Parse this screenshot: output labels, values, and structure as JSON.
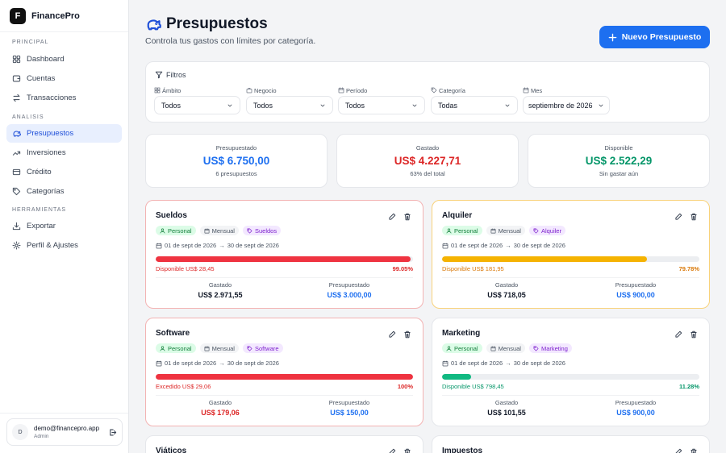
{
  "app": {
    "logo_letter": "F",
    "name": "FinancePro"
  },
  "sidebar": {
    "sections": [
      {
        "label": "PRINCIPAL",
        "items": [
          {
            "label": "Dashboard",
            "icon": "grid-icon"
          },
          {
            "label": "Cuentas",
            "icon": "wallet-icon"
          },
          {
            "label": "Transacciones",
            "icon": "arrows-icon"
          }
        ]
      },
      {
        "label": "ANALISIS",
        "items": [
          {
            "label": "Presupuestos",
            "icon": "piggy-bank-icon",
            "active": true
          },
          {
            "label": "Inversiones",
            "icon": "trending-up-icon"
          },
          {
            "label": "Crédito",
            "icon": "credit-card-icon"
          },
          {
            "label": "Categorías",
            "icon": "tag-icon"
          }
        ]
      },
      {
        "label": "HERRAMIENTAS",
        "items": [
          {
            "label": "Exportar",
            "icon": "download-icon"
          },
          {
            "label": "Perfil & Ajustes",
            "icon": "gear-icon"
          }
        ]
      }
    ]
  },
  "user": {
    "initial": "D",
    "email": "demo@financepro.app",
    "role": "Admin"
  },
  "header": {
    "title": "Presupuestos",
    "subtitle": "Controla tus gastos con límites por categoría.",
    "new_button": "Nuevo Presupuesto"
  },
  "filters": {
    "title": "Filtros",
    "fields": [
      {
        "label": "Ámbito",
        "value": "Todos",
        "icon": "grid-icon"
      },
      {
        "label": "Negocio",
        "value": "Todos",
        "icon": "briefcase-icon"
      },
      {
        "label": "Período",
        "value": "Todos",
        "icon": "calendar-icon"
      },
      {
        "label": "Categoría",
        "value": "Todas",
        "icon": "tag-icon"
      },
      {
        "label": "Mes",
        "value": "septiembre de 2026",
        "icon": "calendar-icon"
      }
    ]
  },
  "summary": [
    {
      "label": "Presupuestado",
      "value": "US$ 6.750,00",
      "note": "6 presupuestos",
      "color": "#1d6ff0"
    },
    {
      "label": "Gastado",
      "value": "US$ 4.227,71",
      "note": "63% del total",
      "color": "#dc2626"
    },
    {
      "label": "Disponible",
      "value": "US$ 2.522,29",
      "note": "Sin gastar aún",
      "color": "#059669"
    }
  ],
  "budgets": [
    {
      "name": "Sueldos",
      "scope": "Personal",
      "period": "Mensual",
      "category": "Sueldos",
      "start": "01 de sept de 2026",
      "arrow": "→",
      "end": "30 de sept de 2026",
      "progress": 0.9905,
      "bar_color": "#ef3340",
      "status": "Disponible US$ 28,45",
      "status_color": "#dc2626",
      "percent": "99.05%",
      "spent_label": "Gastado",
      "spent": "US$ 2.971,55",
      "spent_color": "#111827",
      "budget_label": "Presupuestado",
      "budget": "US$ 3.000,00",
      "border": "red"
    },
    {
      "name": "Alquiler",
      "scope": "Personal",
      "period": "Mensual",
      "category": "Alquiler",
      "start": "01 de sept de 2026",
      "arrow": "→",
      "end": "30 de sept de 2026",
      "progress": 0.7978,
      "bar_color": "#f5b301",
      "status": "Disponible US$ 181,95",
      "status_color": "#d97706",
      "percent": "79.78%",
      "spent_label": "Gastado",
      "spent": "US$ 718,05",
      "spent_color": "#111827",
      "budget_label": "Presupuestado",
      "budget": "US$ 900,00",
      "border": "amber"
    },
    {
      "name": "Software",
      "scope": "Personal",
      "period": "Mensual",
      "category": "Software",
      "start": "01 de sept de 2026",
      "arrow": "→",
      "end": "30 de sept de 2026",
      "progress": 1.0,
      "bar_color": "#ef3340",
      "status": "Excedido US$ 29,06",
      "status_color": "#dc2626",
      "percent": "100%",
      "spent_label": "Gastado",
      "spent": "US$ 179,06",
      "spent_color": "#dc2626",
      "budget_label": "Presupuestado",
      "budget": "US$ 150,00",
      "border": "red"
    },
    {
      "name": "Marketing",
      "scope": "Personal",
      "period": "Mensual",
      "category": "Marketing",
      "start": "01 de sept de 2026",
      "arrow": "→",
      "end": "30 de sept de 2026",
      "progress": 0.1128,
      "bar_color": "#10b981",
      "status": "Disponible US$ 798,45",
      "status_color": "#059669",
      "percent": "11.28%",
      "spent_label": "Gastado",
      "spent": "US$ 101,55",
      "spent_color": "#111827",
      "budget_label": "Presupuestado",
      "budget": "US$ 900,00",
      "border": "none"
    },
    {
      "name": "Viáticos"
    },
    {
      "name": "Impuestos"
    }
  ],
  "colors": {
    "accent": "#1d6ff0",
    "danger": "#dc2626",
    "warning": "#d97706",
    "success": "#059669"
  }
}
